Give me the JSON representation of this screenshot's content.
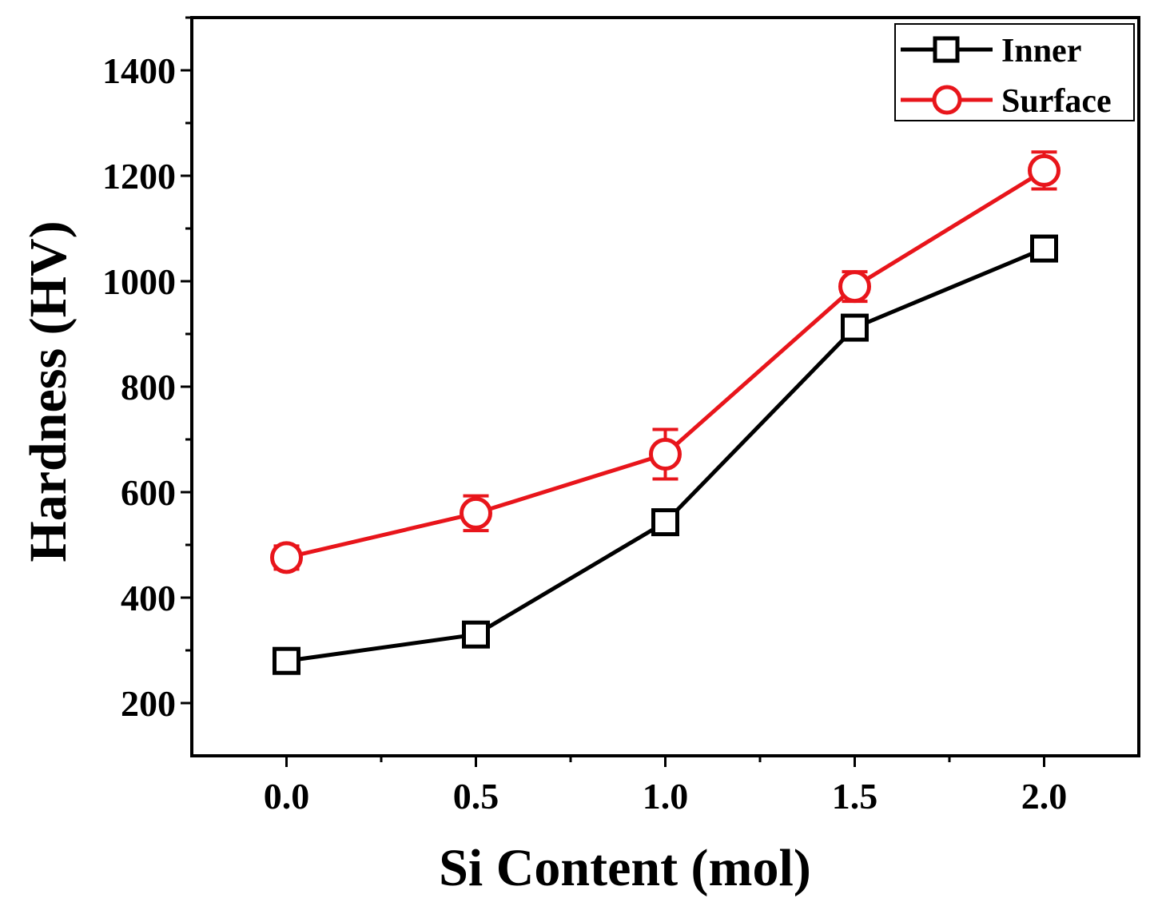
{
  "chart_data": {
    "type": "line",
    "title": "",
    "xlabel": "Si Content (mol)",
    "ylabel": "Hardness (HV)",
    "x": [
      0.0,
      0.5,
      1.0,
      1.5,
      2.0
    ],
    "x_tick_labels": [
      "0.0",
      "0.5",
      "1.0",
      "1.5",
      "2.0"
    ],
    "y_ticks": [
      200,
      400,
      600,
      800,
      1000,
      1200,
      1400
    ],
    "y_tick_labels": [
      "200",
      "400",
      "600",
      "800",
      "1000",
      "1200",
      "1400"
    ],
    "xlim": [
      -0.25,
      2.25
    ],
    "ylim": [
      100,
      1500
    ],
    "grid": false,
    "legend_position": "top-right",
    "series": [
      {
        "name": "Inner",
        "color": "#000000",
        "marker": "square",
        "values": [
          280,
          330,
          543,
          912,
          1062
        ],
        "errors": [
          0,
          0,
          0,
          0,
          0
        ]
      },
      {
        "name": "Surface",
        "color": "#e8151b",
        "marker": "circle",
        "values": [
          476,
          560,
          672,
          990,
          1210
        ],
        "errors": [
          22,
          33,
          47,
          28,
          35
        ]
      }
    ]
  }
}
